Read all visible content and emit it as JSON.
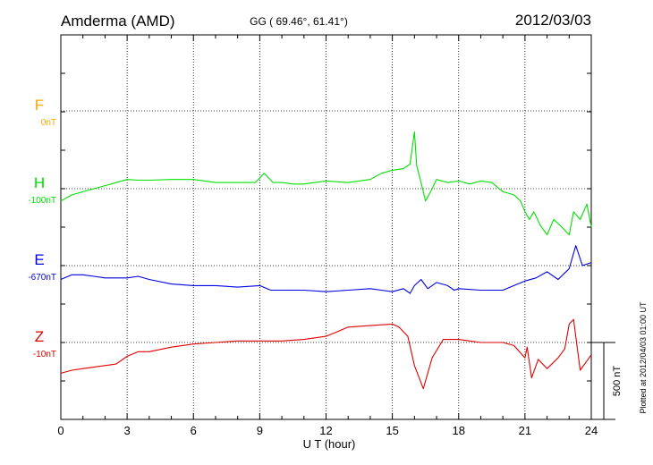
{
  "header": {
    "station": "Amderma (AMD)",
    "coords": "GG ( 69.46°,  61.41°)",
    "date": "2012/03/03"
  },
  "side_note": "Plotted at 2012/04/03 01:00 UT",
  "scale_bar_label": "500 nT",
  "chart_data": {
    "type": "line",
    "xlabel": "U T (hour)",
    "xlim": [
      0,
      24
    ],
    "x_ticks": [
      "0",
      "3",
      "6",
      "9",
      "12",
      "15",
      "18",
      "21",
      "24"
    ],
    "grid": true,
    "scale_nT": 500,
    "series": [
      {
        "name": "F",
        "offset_label": "0nT",
        "color": "#ffa500",
        "x": [],
        "y": []
      },
      {
        "name": "H",
        "offset_label": "-100nT",
        "color": "#00e000",
        "x": [
          0,
          0.5,
          1,
          2,
          3,
          3.5,
          4,
          5,
          6,
          7,
          8,
          8.8,
          9.2,
          9.6,
          10,
          10.5,
          11,
          11.5,
          12,
          13,
          14,
          14.5,
          15,
          15.5,
          15.8,
          16.0,
          16.1,
          16.3,
          16.5,
          16.8,
          17,
          17.5,
          18,
          18.5,
          19,
          19.5,
          20,
          20.5,
          20.8,
          21,
          21.2,
          21.4,
          21.7,
          22,
          22.3,
          22.6,
          23,
          23.2,
          23.5,
          23.8,
          24
        ],
        "y": [
          -80,
          -40,
          -20,
          20,
          60,
          55,
          55,
          60,
          60,
          40,
          40,
          40,
          100,
          40,
          40,
          30,
          30,
          40,
          50,
          40,
          60,
          100,
          120,
          130,
          160,
          370,
          150,
          40,
          -80,
          0,
          60,
          40,
          50,
          30,
          50,
          40,
          -20,
          -40,
          -80,
          -150,
          -200,
          -150,
          -240,
          -300,
          -200,
          -240,
          -300,
          -150,
          -200,
          -100,
          -250
        ]
      },
      {
        "name": "E",
        "offset_label": "-670nT",
        "color": "#0000e0",
        "x": [
          0,
          0.5,
          1,
          1.5,
          2,
          3,
          3.5,
          4,
          5,
          6,
          7,
          8,
          9,
          9.5,
          10,
          11,
          12,
          13,
          14,
          14.5,
          15,
          15.5,
          15.8,
          16,
          16.3,
          16.6,
          17,
          17.5,
          17.8,
          18,
          19,
          20,
          20.5,
          21,
          21.5,
          22,
          22.5,
          23,
          23.3,
          23.6,
          24
        ],
        "y": [
          -90,
          -60,
          -60,
          -70,
          -80,
          -80,
          -70,
          -90,
          -120,
          -130,
          -130,
          -140,
          -130,
          -160,
          -160,
          -160,
          -170,
          -160,
          -150,
          -160,
          -170,
          -150,
          -180,
          -130,
          -90,
          -150,
          -110,
          -130,
          -160,
          -150,
          -160,
          -160,
          -130,
          -100,
          -80,
          -40,
          -90,
          -20,
          130,
          0,
          20
        ]
      },
      {
        "name": "Z",
        "offset_label": "-10nT",
        "color": "#e00000",
        "x": [
          0,
          0.5,
          1,
          2,
          2.5,
          3,
          3.5,
          4,
          5,
          6,
          7,
          8,
          9,
          10,
          11,
          12,
          12.5,
          13,
          14,
          15,
          15.3,
          15.7,
          16,
          16.4,
          16.8,
          17.3,
          18,
          19,
          20,
          20.5,
          21,
          21.1,
          21.3,
          21.6,
          22,
          22.5,
          22.8,
          23,
          23.2,
          23.5,
          23.8,
          24
        ],
        "y": [
          -200,
          -180,
          -170,
          -150,
          -140,
          -90,
          -60,
          -60,
          -30,
          -10,
          0,
          10,
          10,
          10,
          20,
          40,
          70,
          100,
          110,
          120,
          100,
          40,
          -150,
          -300,
          -100,
          20,
          20,
          0,
          0,
          -20,
          -100,
          -30,
          -230,
          -110,
          -170,
          -100,
          -40,
          120,
          150,
          -180,
          -120,
          -80
        ]
      }
    ]
  }
}
